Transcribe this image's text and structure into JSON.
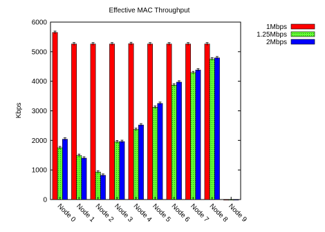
{
  "chart_data": {
    "type": "bar",
    "title": "Effective MAC Throughput",
    "xlabel": "",
    "ylabel": "Kbps",
    "ylim": [
      0,
      6000
    ],
    "yticks": [
      "0",
      "1000",
      "2000",
      "3000",
      "4000",
      "5000",
      "6000"
    ],
    "categories": [
      "Node 0",
      "Node 1",
      "Node 2",
      "Node 3",
      "Node 4",
      "Node 5",
      "Node 6",
      "Node 7",
      "Node 8",
      "Node 9"
    ],
    "series": [
      {
        "name": "1Mbps",
        "color": "#ff0000",
        "pattern": "solid",
        "values": [
          5650,
          5260,
          5260,
          5260,
          5270,
          5260,
          5260,
          5260,
          5260,
          0
        ]
      },
      {
        "name": "1.25Mbps",
        "color": "#33cc33",
        "pattern": "dotted",
        "values": [
          1750,
          1490,
          930,
          1950,
          2370,
          3120,
          3870,
          4290,
          4750,
          0
        ]
      },
      {
        "name": "2Mbps",
        "color": "#0000ff",
        "pattern": "solid",
        "values": [
          2040,
          1400,
          820,
          1960,
          2520,
          3250,
          3970,
          4380,
          4790,
          0
        ]
      }
    ],
    "error_bars": true,
    "legend_position": "top-right",
    "grid": false
  }
}
